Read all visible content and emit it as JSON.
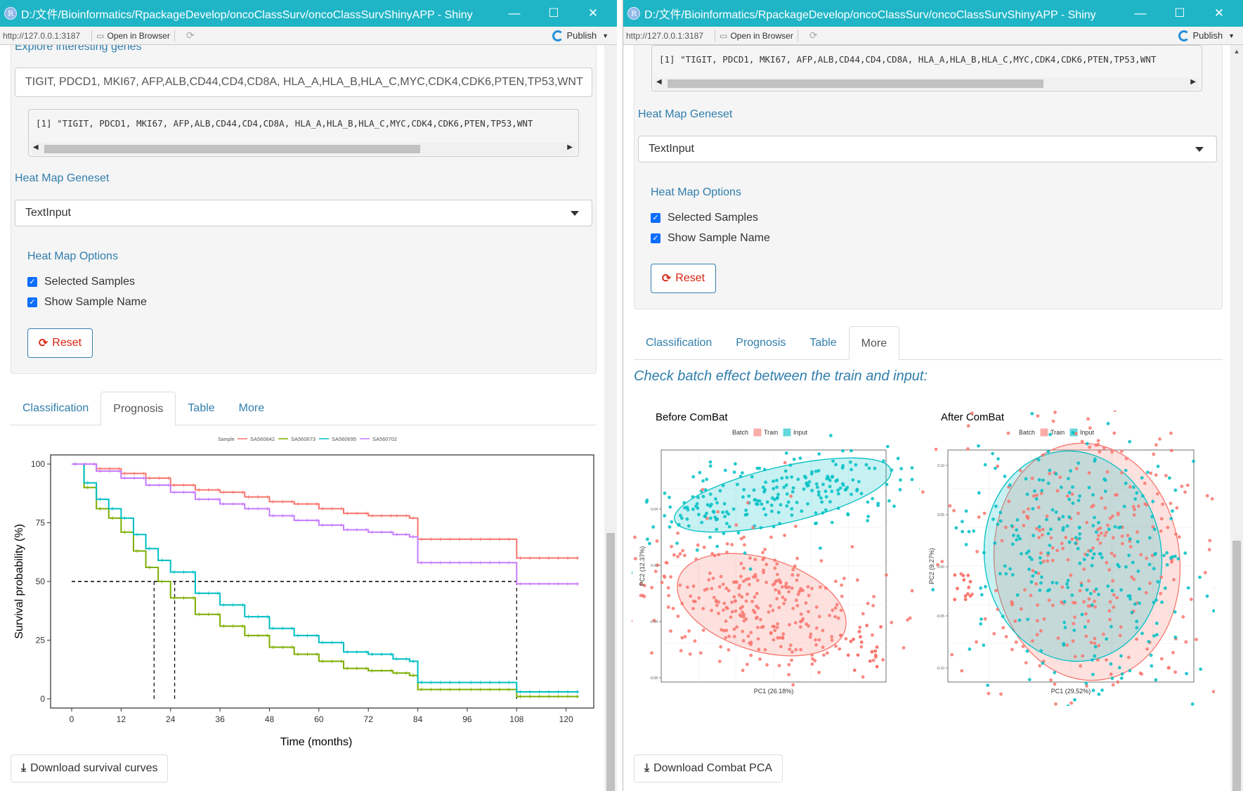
{
  "left": {
    "window": {
      "title": "D:/文件/Bioinformatics/RpackageDevelop/oncoClassSurv/oncoClassSurvShinyAPP - Shiny"
    },
    "toolbar": {
      "url": "http://127.0.0.1:3187",
      "open_browser": "Open in Browser",
      "publish": "Publish"
    },
    "explore_label": "Explore interesting genes",
    "genes_input": "TIGIT, PDCD1, MKI67, AFP,ALB,CD44,CD4,CD8A, HLA_A,HLA_B,HLA_C,MYC,CDK4,CDK6,PTEN,TP53,WNT",
    "genes_output": "[1] \"TIGIT, PDCD1, MKI67, AFP,ALB,CD44,CD4,CD8A, HLA_A,HLA_B,HLA_C,MYC,CDK4,CDK6,PTEN,TP53,WNT",
    "heatmap_geneset_label": "Heat Map Geneset",
    "heatmap_geneset_value": "TextInput",
    "heatmap_options_label": "Heat Map Options",
    "opt_selected": "Selected Samples",
    "opt_show_name": "Show Sample Name",
    "reset": "Reset",
    "tabs": [
      "Classification",
      "Prognosis",
      "Table",
      "More"
    ],
    "download": "Download survival curves"
  },
  "right": {
    "window": {
      "title": "D:/文件/Bioinformatics/RpackageDevelop/oncoClassSurv/oncoClassSurvShinyAPP - Shiny"
    },
    "toolbar": {
      "url": "http://127.0.0.1:3187",
      "open_browser": "Open in Browser",
      "publish": "Publish"
    },
    "genes_output": "[1] \"TIGIT, PDCD1, MKI67, AFP,ALB,CD44,CD4,CD8A, HLA_A,HLA_B,HLA_C,MYC,CDK4,CDK6,PTEN,TP53,WNT",
    "heatmap_geneset_label": "Heat Map Geneset",
    "heatmap_geneset_value": "TextInput",
    "heatmap_options_label": "Heat Map Options",
    "opt_selected": "Selected Samples",
    "opt_show_name": "Show Sample Name",
    "reset": "Reset",
    "tabs": [
      "Classification",
      "Prognosis",
      "Table",
      "More"
    ],
    "heading": "Check batch effect between the train and input:",
    "download": "Download Combat PCA"
  },
  "colors": {
    "train": "#f8766d",
    "input": "#00bfc4",
    "s1": "#f8766d",
    "s2": "#7cae00",
    "s3": "#00bfc4",
    "s4": "#c77cff",
    "link": "#317eac"
  },
  "chart_data": [
    {
      "type": "line",
      "subtype": "kaplan-meier",
      "title": "",
      "xlabel": "Time (months)",
      "ylabel": "Survival probability (%)",
      "legend_title": "Sample",
      "xlim": [
        0,
        125
      ],
      "ylim": [
        0,
        100
      ],
      "xticks": [
        0,
        12,
        24,
        36,
        48,
        60,
        72,
        84,
        96,
        108,
        120
      ],
      "yticks": [
        0,
        25,
        50,
        75,
        100
      ],
      "median_survival": [
        20,
        25,
        108
      ],
      "series": [
        {
          "name": "SA560642",
          "color": "#f8766d",
          "x": [
            0,
            6,
            12,
            18,
            24,
            30,
            36,
            42,
            48,
            54,
            60,
            66,
            72,
            78,
            82,
            84,
            96,
            108,
            123
          ],
          "y": [
            100,
            98,
            96,
            94,
            91,
            89,
            88,
            86,
            84,
            83,
            81,
            79,
            78,
            78,
            77,
            68,
            68,
            60,
            60
          ]
        },
        {
          "name": "SA560673",
          "color": "#7cae00",
          "x": [
            0,
            3,
            6,
            9,
            12,
            15,
            18,
            21,
            24,
            30,
            36,
            42,
            48,
            54,
            60,
            66,
            72,
            78,
            82,
            84,
            96,
            108,
            123
          ],
          "y": [
            100,
            90,
            81,
            77,
            71,
            63,
            56,
            50,
            43,
            36,
            31,
            27,
            22,
            19,
            16,
            13,
            12,
            11,
            10,
            4,
            4,
            1,
            1
          ]
        },
        {
          "name": "SA560695",
          "color": "#00bfc4",
          "x": [
            0,
            3,
            6,
            9,
            12,
            15,
            18,
            21,
            24,
            30,
            36,
            42,
            48,
            54,
            60,
            66,
            72,
            78,
            82,
            84,
            96,
            108,
            123
          ],
          "y": [
            100,
            92,
            85,
            81,
            77,
            70,
            64,
            59,
            54,
            45,
            40,
            35,
            30,
            27,
            24,
            20,
            19,
            17,
            16,
            7,
            7,
            3,
            3
          ]
        },
        {
          "name": "SA560702",
          "color": "#c77cff",
          "x": [
            0,
            6,
            12,
            18,
            24,
            30,
            36,
            42,
            48,
            54,
            60,
            66,
            72,
            78,
            82,
            84,
            96,
            108,
            123
          ],
          "y": [
            100,
            97,
            94,
            91,
            88,
            85,
            83,
            81,
            78,
            76,
            74,
            72,
            71,
            70,
            69,
            58,
            58,
            49,
            49
          ]
        }
      ]
    },
    {
      "type": "scatter",
      "title": "Before ComBat",
      "xlabel": "PC1 (26.18%)",
      "ylabel": "PC2 (12.37%)",
      "legend_title": "Batch",
      "legend": [
        "Train",
        "Input"
      ],
      "yticks": [
        "0.04",
        "0.00",
        "-0.04",
        "-0.08"
      ]
    },
    {
      "type": "scatter",
      "title": "After ComBat",
      "xlabel": "PC1 (29.52%)",
      "ylabel": "PC2 (9.27%)",
      "legend_title": "Batch",
      "legend": [
        "Train",
        "Input"
      ],
      "yticks": [
        "0.10",
        "0.05",
        "0.00",
        "-0.05",
        "-0.10"
      ]
    }
  ]
}
